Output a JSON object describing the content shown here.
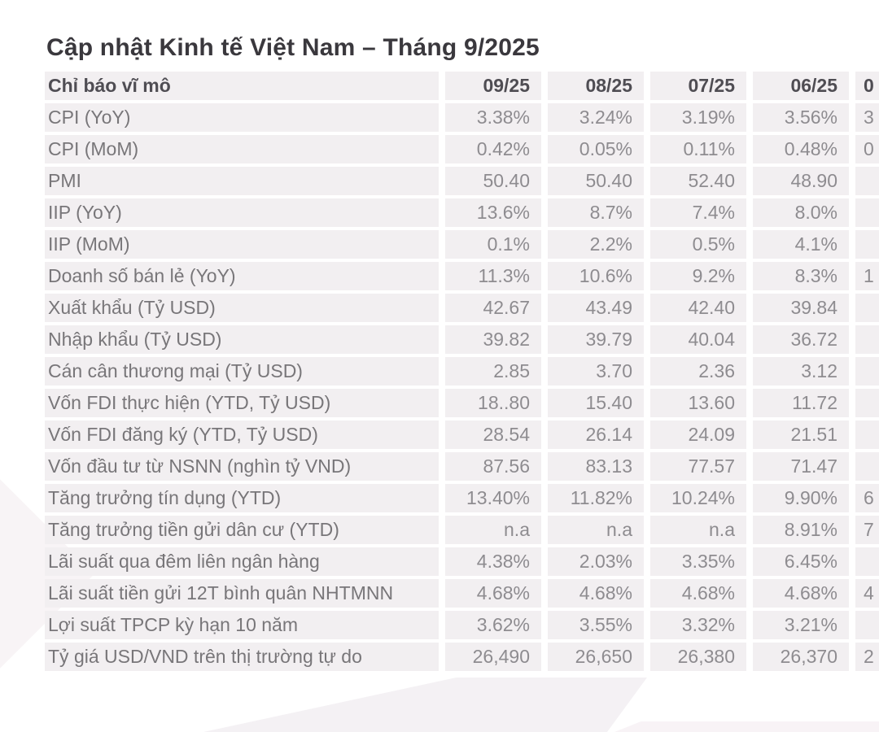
{
  "title": "Cập nhật Kinh tế Việt Nam – Tháng 9/2025",
  "table": {
    "header": {
      "label": "Chỉ báo vĩ mô",
      "columns": [
        "09/25",
        "08/25",
        "07/25",
        "06/25"
      ],
      "clipped_column_partial": "0"
    },
    "rows": [
      {
        "label": "CPI (YoY)",
        "values": [
          "3.38%",
          "3.24%",
          "3.19%",
          "3.56%"
        ],
        "clipped_partial": "3"
      },
      {
        "label": "CPI (MoM)",
        "values": [
          "0.42%",
          "0.05%",
          "0.11%",
          "0.48%"
        ],
        "clipped_partial": "0"
      },
      {
        "label": "PMI",
        "values": [
          "50.40",
          "50.40",
          "52.40",
          "48.90"
        ],
        "clipped_partial": ""
      },
      {
        "label": "IIP (YoY)",
        "values": [
          "13.6%",
          "8.7%",
          "7.4%",
          "8.0%"
        ],
        "clipped_partial": ""
      },
      {
        "label": "IIP (MoM)",
        "values": [
          "0.1%",
          "2.2%",
          "0.5%",
          "4.1%"
        ],
        "clipped_partial": ""
      },
      {
        "label": "Doanh số bán lẻ (YoY)",
        "values": [
          "11.3%",
          "10.6%",
          "9.2%",
          "8.3%"
        ],
        "clipped_partial": "1"
      },
      {
        "label": "Xuất khẩu (Tỷ USD)",
        "values": [
          "42.67",
          "43.49",
          "42.40",
          "39.84"
        ],
        "clipped_partial": ""
      },
      {
        "label": "Nhập khẩu (Tỷ USD)",
        "values": [
          "39.82",
          "39.79",
          "40.04",
          "36.72"
        ],
        "clipped_partial": ""
      },
      {
        "label": "Cán cân thương mại (Tỷ USD)",
        "values": [
          "2.85",
          "3.70",
          "2.36",
          "3.12"
        ],
        "clipped_partial": ""
      },
      {
        "label": "Vốn FDI thực hiện (YTD, Tỷ USD)",
        "values": [
          "18..80",
          "15.40",
          "13.60",
          "11.72"
        ],
        "clipped_partial": ""
      },
      {
        "label": "Vốn FDI đăng ký (YTD, Tỷ USD)",
        "values": [
          "28.54",
          "26.14",
          "24.09",
          "21.51"
        ],
        "clipped_partial": ""
      },
      {
        "label": "Vốn đầu tư từ NSNN (nghìn tỷ VND)",
        "values": [
          "87.56",
          "83.13",
          "77.57",
          "71.47"
        ],
        "clipped_partial": ""
      },
      {
        "label": "Tăng trưởng tín dụng (YTD)",
        "values": [
          "13.40%",
          "11.82%",
          "10.24%",
          "9.90%"
        ],
        "clipped_partial": "6"
      },
      {
        "label": "Tăng trưởng tiền gửi dân cư (YTD)",
        "values": [
          "n.a",
          "n.a",
          "n.a",
          "8.91%"
        ],
        "clipped_partial": "7"
      },
      {
        "label": "Lãi suất qua đêm liên ngân hàng",
        "values": [
          "4.38%",
          "2.03%",
          "3.35%",
          "6.45%"
        ],
        "clipped_partial": ""
      },
      {
        "label": "Lãi suất tiền gửi 12T bình quân NHTMNN",
        "values": [
          "4.68%",
          "4.68%",
          "4.68%",
          "4.68%"
        ],
        "clipped_partial": "4"
      },
      {
        "label": "Lợi suất TPCP kỳ hạn 10 năm",
        "values": [
          "3.62%",
          "3.55%",
          "3.32%",
          "3.21%"
        ],
        "clipped_partial": ""
      },
      {
        "label": "Tỷ giá USD/VND trên thị trường tự do",
        "values": [
          "26,490",
          "26,650",
          "26,380",
          "26,370"
        ],
        "clipped_partial": "2"
      }
    ]
  },
  "colors": {
    "row_background": "#f2eff1",
    "header_text": "#4f4d53",
    "label_text": "#787679",
    "value_text": "#8e8c90",
    "title_text": "#3a383d",
    "page_background": "#ffffff"
  }
}
